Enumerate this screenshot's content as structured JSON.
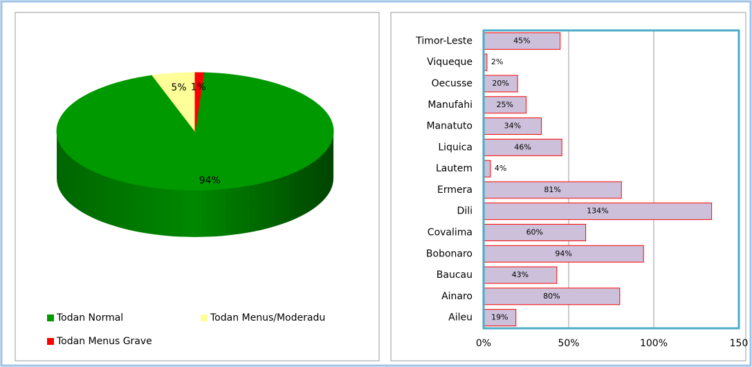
{
  "chart_data": [
    {
      "type": "pie",
      "categories": [
        "Todan Normal",
        "Todan Menus/Moderadu",
        "Todan Menus Grave"
      ],
      "values": [
        94,
        5,
        1
      ],
      "value_labels": [
        "94%",
        "5%",
        "1%"
      ],
      "colors": [
        "#009900",
        "#ffff99",
        "#ff0000"
      ],
      "legend": "bottom"
    },
    {
      "type": "hbar",
      "categories": [
        "Timor-Leste",
        "Viqueque",
        "Oecusse",
        "Manufahi",
        "Manatuto",
        "Liquica",
        "Lautem",
        "Ermera",
        "Dili",
        "Covalima",
        "Bobonaro",
        "Baucau",
        "Ainaro",
        "Aileu"
      ],
      "values": [
        45,
        2,
        20,
        25,
        34,
        46,
        4,
        81,
        134,
        60,
        94,
        43,
        80,
        19
      ],
      "value_labels": [
        "45%",
        "2%",
        "20%",
        "25%",
        "34%",
        "46%",
        "4%",
        "81%",
        "134%",
        "60%",
        "94%",
        "43%",
        "80%",
        "19%"
      ],
      "color": "#ccc0da",
      "edge_color": "#ff0000",
      "xlim": [
        0,
        150
      ],
      "xticks": [
        {
          "value": 0,
          "label": "0%"
        },
        {
          "value": 50,
          "label": "50%"
        },
        {
          "value": 100,
          "label": "100%"
        },
        150
      ],
      "grid": true
    }
  ]
}
